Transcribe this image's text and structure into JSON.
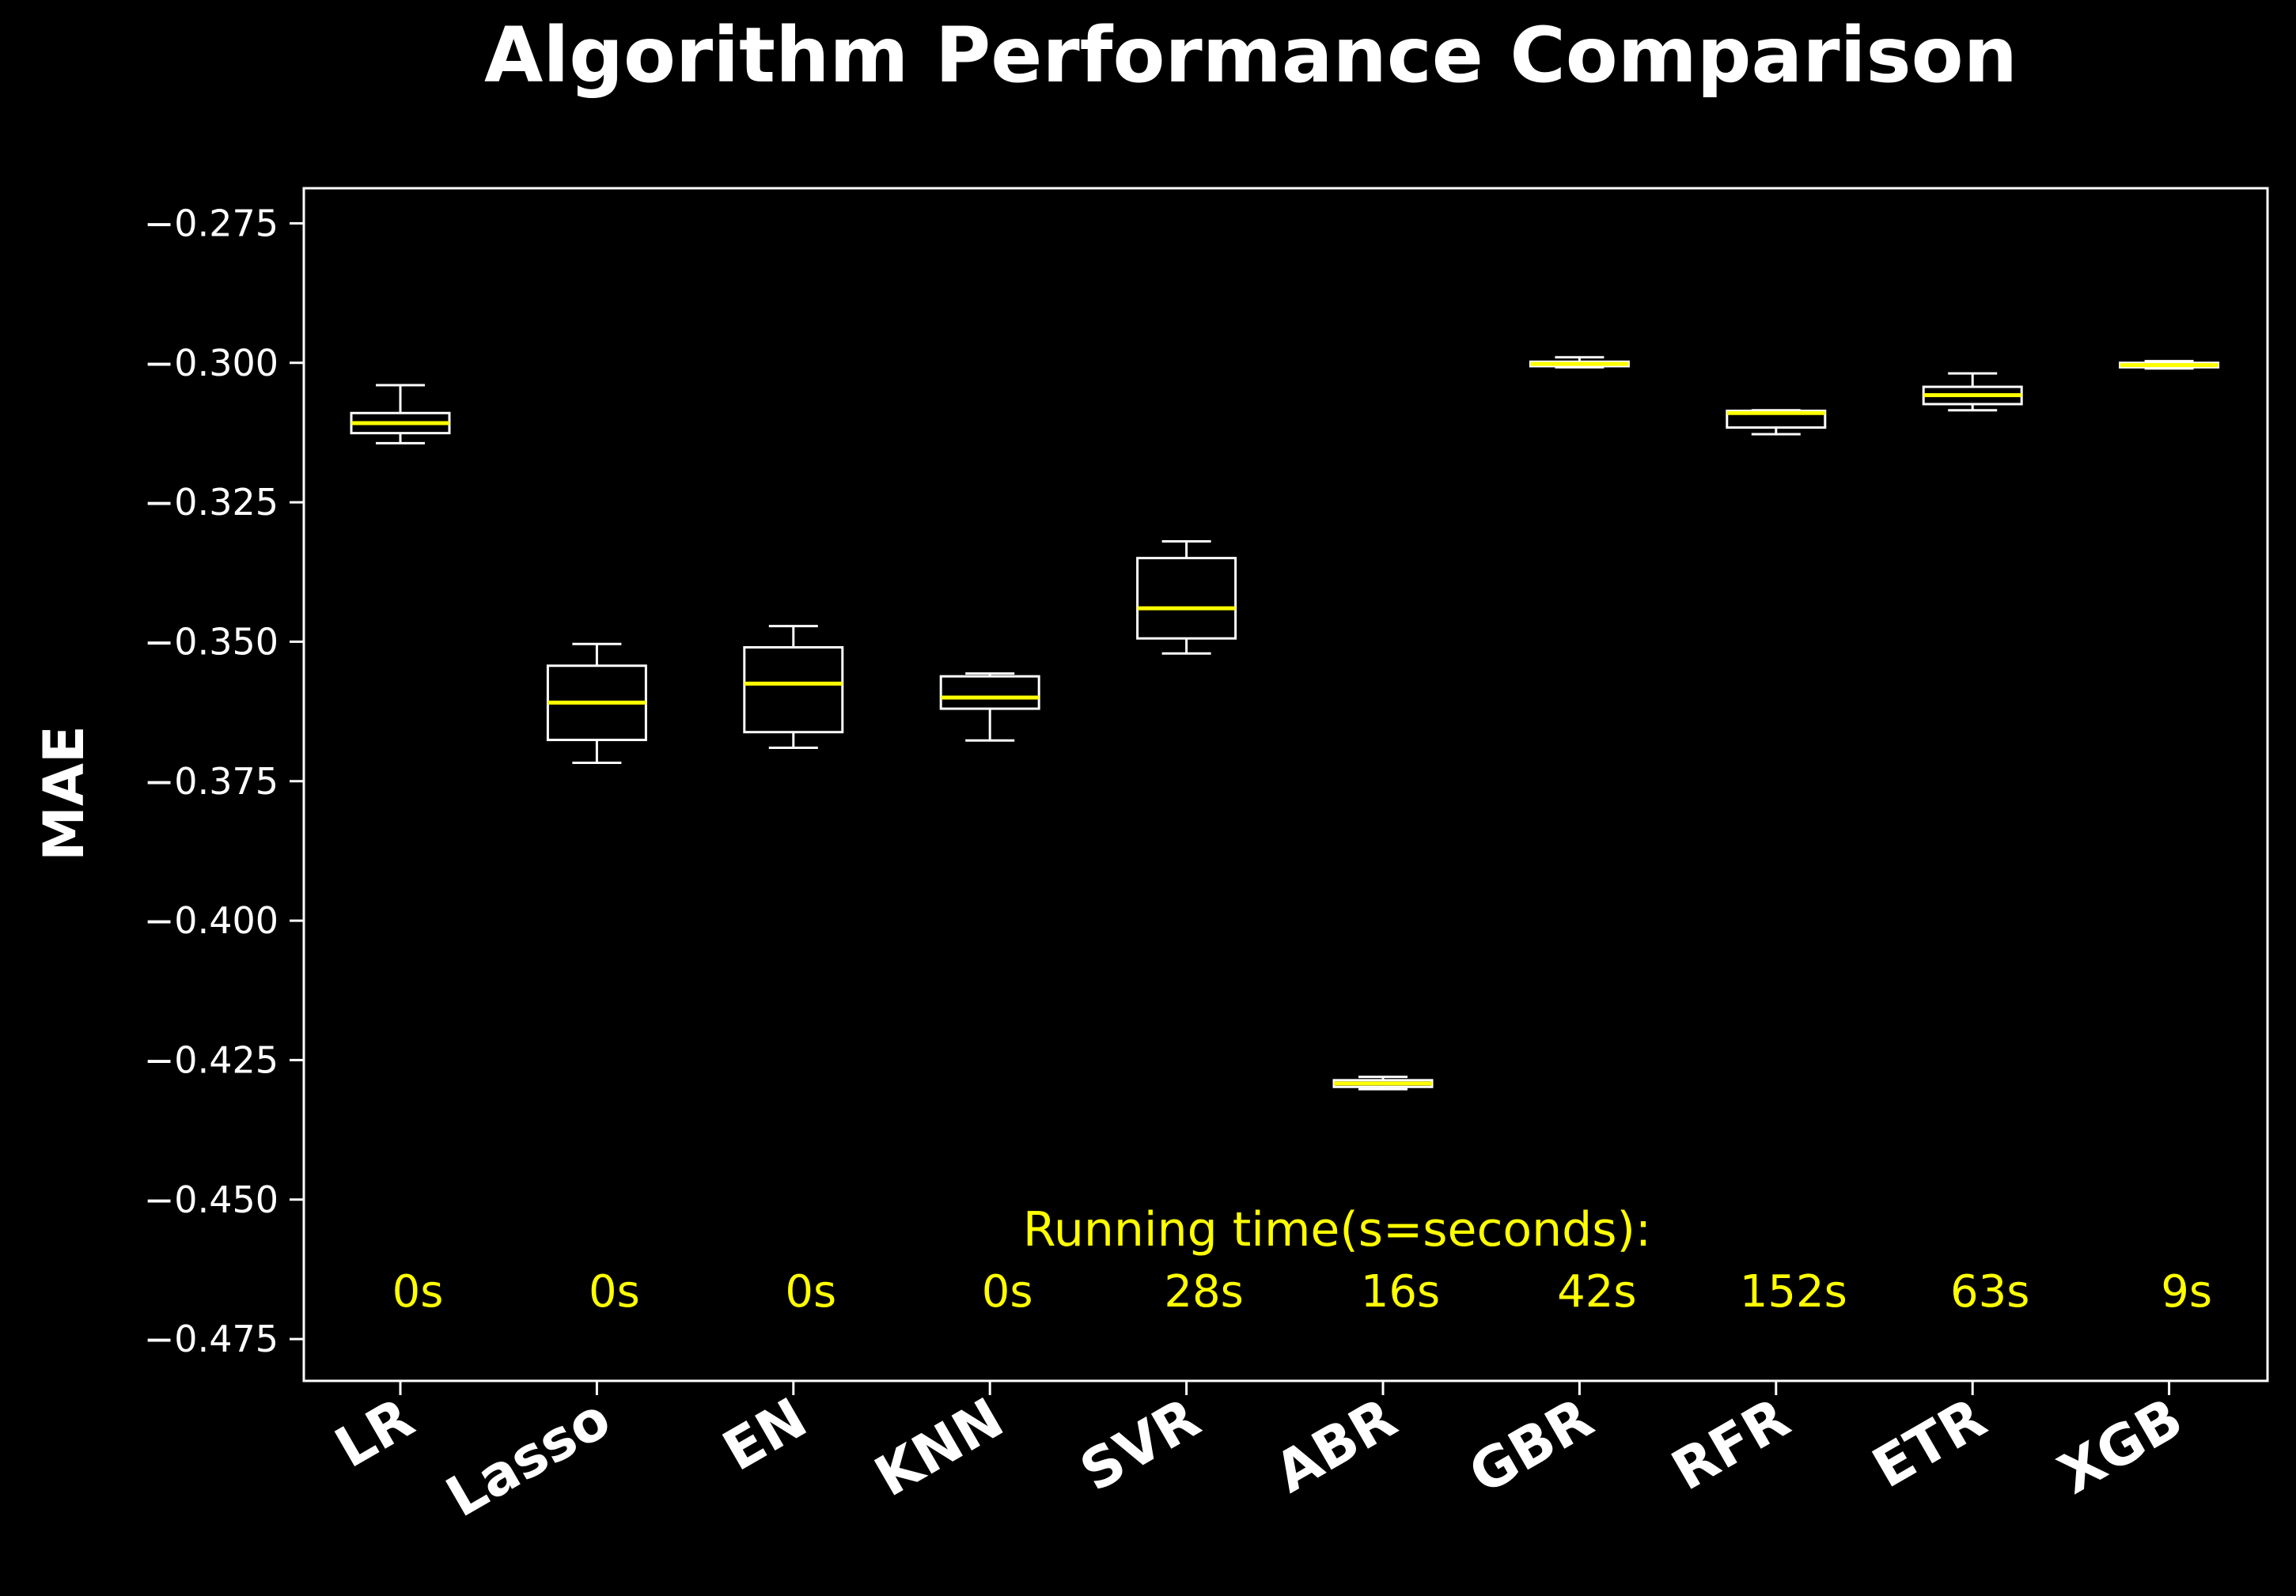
{
  "chart_data": {
    "type": "box",
    "title": "Algorithm Performance Comparison",
    "xlabel": "",
    "ylabel": "MAE",
    "ylim": [
      -0.4825,
      -0.2687
    ],
    "yticks": [
      -0.275,
      -0.3,
      -0.325,
      -0.35,
      -0.375,
      -0.4,
      -0.425,
      -0.45,
      -0.475
    ],
    "ytick_labels": [
      "−0.275",
      "−0.300",
      "−0.325",
      "−0.350",
      "−0.375",
      "−0.400",
      "−0.425",
      "−0.450",
      "−0.475"
    ],
    "categories": [
      "LR",
      "Lasso",
      "EN",
      "KNN",
      "SVR",
      "ABR",
      "GBR",
      "RFR",
      "ETR",
      "XGB"
    ],
    "boxes": [
      {
        "whisker_low": -0.3144,
        "q1": -0.3126,
        "median": -0.3108,
        "q3": -0.309,
        "whisker_high": -0.304
      },
      {
        "whisker_low": -0.3717,
        "q1": -0.3676,
        "median": -0.3609,
        "q3": -0.3543,
        "whisker_high": -0.3504
      },
      {
        "whisker_low": -0.369,
        "q1": -0.3662,
        "median": -0.3575,
        "q3": -0.351,
        "whisker_high": -0.3472
      },
      {
        "whisker_low": -0.3677,
        "q1": -0.362,
        "median": -0.36,
        "q3": -0.3562,
        "whisker_high": -0.3557
      },
      {
        "whisker_low": -0.3521,
        "q1": -0.3494,
        "median": -0.344,
        "q3": -0.335,
        "whisker_high": -0.332
      },
      {
        "whisker_low": -0.4302,
        "q1": -0.4298,
        "median": -0.4292,
        "q3": -0.4286,
        "whisker_high": -0.428
      },
      {
        "whisker_low": -0.3008,
        "q1": -0.3006,
        "median": -0.3002,
        "q3": -0.2998,
        "whisker_high": -0.299
      },
      {
        "whisker_low": -0.3128,
        "q1": -0.3116,
        "median": -0.309,
        "q3": -0.3086,
        "whisker_high": -0.3085
      },
      {
        "whisker_low": -0.3085,
        "q1": -0.3074,
        "median": -0.3058,
        "q3": -0.3043,
        "whisker_high": -0.3019
      },
      {
        "whisker_low": -0.301,
        "q1": -0.3008,
        "median": -0.3004,
        "q3": -0.3,
        "whisker_high": -0.2997
      }
    ],
    "annotation_title": "Running time(s=seconds):",
    "running_times": [
      "0s",
      "0s",
      "0s",
      "0s",
      "28s",
      "16s",
      "42s",
      "152s",
      "63s",
      "9s"
    ],
    "colors": {
      "background": "#000000",
      "axes": "#ffffff",
      "box": "#ffffff",
      "median": "#ffff00",
      "annotation": "#ffff00",
      "text": "#ffffff"
    },
    "grid": false,
    "legend": "none"
  }
}
